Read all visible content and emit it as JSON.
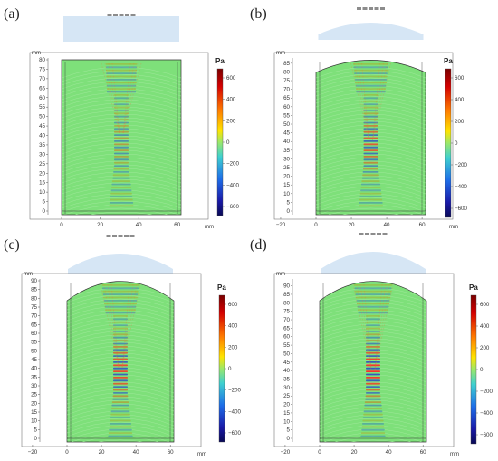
{
  "panels": [
    {
      "id": "a",
      "label": "(a)",
      "lens": "flat",
      "x_ticks": [
        "0",
        "20",
        "40",
        "60"
      ],
      "y_ticks": [
        "0",
        "5",
        "10",
        "15",
        "20",
        "25",
        "30",
        "35",
        "40",
        "45",
        "50",
        "55",
        "60",
        "65",
        "70",
        "75",
        "80"
      ],
      "y_max": 80,
      "focus_intensity": 0.45,
      "cone_spread": 0.12
    },
    {
      "id": "b",
      "label": "(b)",
      "lens": "dome",
      "x_ticks": [
        "−20",
        "0",
        "20",
        "40",
        "60"
      ],
      "y_ticks": [
        "0",
        "5",
        "10",
        "15",
        "20",
        "25",
        "30",
        "35",
        "40",
        "45",
        "50",
        "55",
        "60",
        "65",
        "70",
        "75",
        "80",
        "85"
      ],
      "y_max": 87,
      "focus_intensity": 0.8,
      "cone_spread": 0.35
    },
    {
      "id": "c",
      "label": "(c)",
      "lens": "dome-tall",
      "x_ticks": [
        "−20",
        "0",
        "20",
        "40",
        "60"
      ],
      "y_ticks": [
        "0",
        "5",
        "10",
        "15",
        "20",
        "25",
        "30",
        "35",
        "40",
        "45",
        "50",
        "55",
        "60",
        "65",
        "70",
        "75",
        "80",
        "85",
        "90"
      ],
      "y_max": 90,
      "focus_intensity": 0.9,
      "cone_spread": 0.45
    },
    {
      "id": "d",
      "label": "(d)",
      "lens": "dome-taller",
      "x_ticks": [
        "−20",
        "0",
        "20",
        "40",
        "60"
      ],
      "y_ticks": [
        "0",
        "5",
        "10",
        "15",
        "20",
        "25",
        "30",
        "35",
        "40",
        "45",
        "50",
        "55",
        "60",
        "65",
        "70",
        "75",
        "80",
        "85",
        "90"
      ],
      "y_max": 93,
      "focus_intensity": 1.0,
      "cone_spread": 0.5
    }
  ],
  "axis_unit": "mm",
  "colorbar": {
    "title": "Pa",
    "ticks": [
      "600",
      "400",
      "200",
      "0",
      "−200",
      "−400",
      "−600"
    ]
  },
  "colors": {
    "field": "#7ee07a",
    "lens": "#d6e6f5",
    "transducer": "#8c8c8c"
  }
}
